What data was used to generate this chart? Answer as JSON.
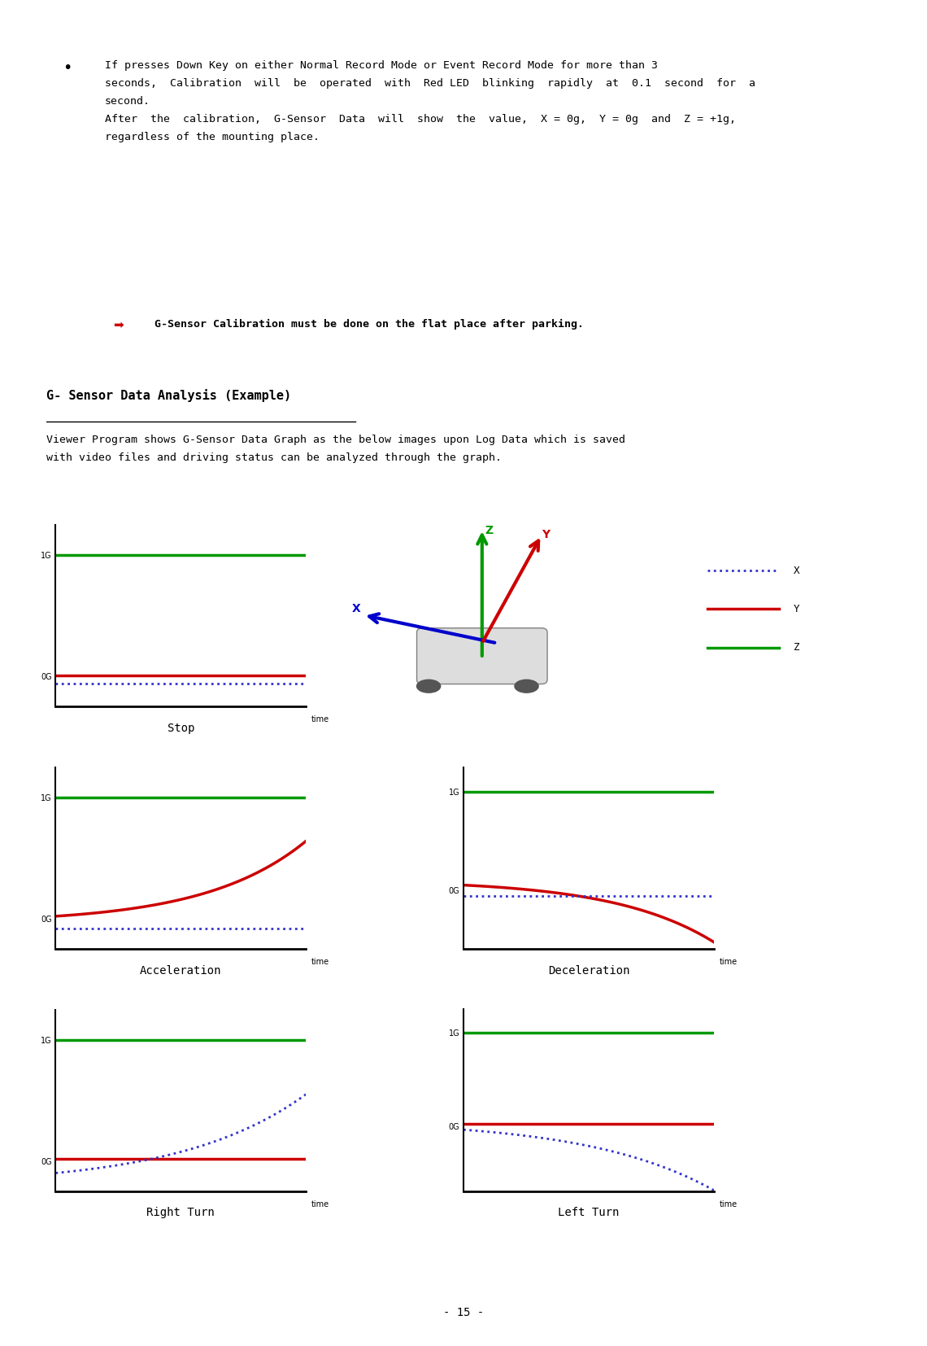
{
  "page_num": "- 15 -",
  "section_title": "G- Sensor Data Analysis (Example)",
  "description_line1": "Viewer Program shows G-Sensor Data Graph as the below images upon Log Data which is saved",
  "description_line2": "with video files and driving status can be analyzed through the graph.",
  "graph_labels": {
    "stop": "Stop",
    "accel": "Acceleration",
    "decel": "Deceleration",
    "right": "Right Turn",
    "left": "Left Turn"
  },
  "colors": {
    "x_color": "#3333cc",
    "y_color": "#cc0000",
    "z_color": "#009900",
    "text": "#000000",
    "bg": "#ffffff",
    "warning_icon": "#cc0000",
    "legend_bg": "#e8e8e8"
  },
  "legend_labels": [
    "X",
    "Y",
    "Z"
  ]
}
